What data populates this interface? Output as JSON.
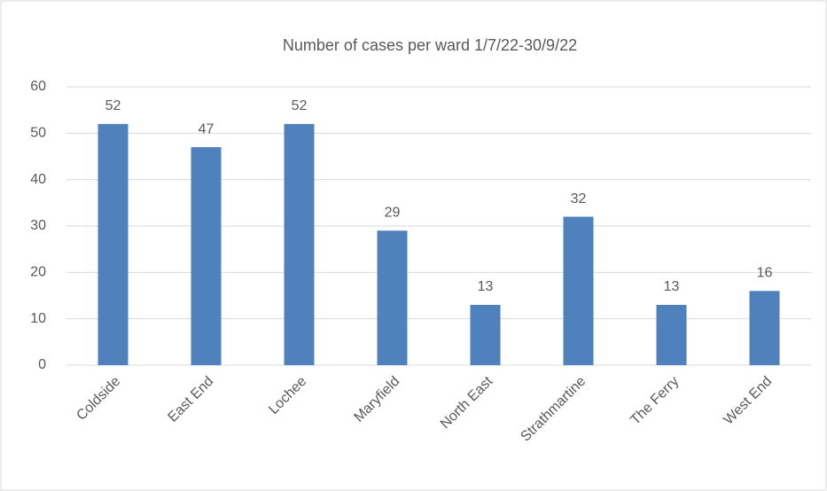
{
  "chart_data": {
    "type": "bar",
    "title": "Number of cases per ward 1/7/22-30/9/22",
    "categories": [
      "Coldside",
      "East End",
      "Lochee",
      "Maryfield",
      "North East",
      "Strathmartine",
      "The Ferry",
      "West End"
    ],
    "values": [
      52,
      47,
      52,
      29,
      13,
      32,
      13,
      16
    ],
    "color": "#4f81bd",
    "ylim": [
      0,
      60
    ],
    "yticks": [
      0,
      10,
      20,
      30,
      40,
      50,
      60
    ],
    "grid": true
  }
}
